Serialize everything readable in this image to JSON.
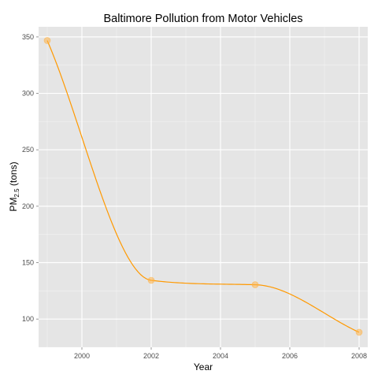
{
  "chart_data": {
    "type": "line",
    "title": "Baltimore Pollution from Motor Vehicles",
    "xlabel": "Year",
    "ylabel": {
      "main": "PM",
      "subscript": "2.5",
      "suffix": " (tons)"
    },
    "x": [
      1999,
      2002,
      2005,
      2008
    ],
    "series": [
      {
        "values": [
          346.82,
          134.31,
          130.43,
          88.28
        ],
        "line_color": "#ff9900",
        "point_color": "#ffb347",
        "smoothed": true
      }
    ],
    "xlim": [
      1998.75,
      2008.25
    ],
    "ylim": [
      75.0,
      359.0
    ],
    "x_ticks": [
      2000,
      2002,
      2004,
      2006,
      2008
    ],
    "y_ticks": [
      100,
      150,
      200,
      250,
      300,
      350
    ],
    "x_tick_labels": [
      "2000",
      "2002",
      "2004",
      "2006",
      "2008"
    ],
    "y_tick_labels": [
      "100",
      "150",
      "200",
      "250",
      "300",
      "350"
    ],
    "grid": true,
    "legend": "none",
    "panel_color": "#e5e5e5",
    "grid_color": "#ffffff"
  }
}
